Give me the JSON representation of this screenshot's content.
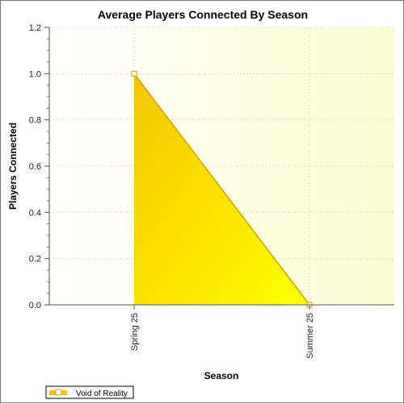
{
  "chart_data": {
    "type": "area",
    "title": "Average Players Connected By Season",
    "xlabel": "Season",
    "ylabel": "Players Connected",
    "categories": [
      "Spring 25",
      "Summer 25"
    ],
    "series": [
      {
        "name": "Void of Reality",
        "values": [
          1.0,
          0.0
        ]
      }
    ],
    "ylim": [
      0,
      1.2
    ],
    "yticks": [
      "0.0",
      "0.2",
      "0.4",
      "0.6",
      "0.8",
      "1.0",
      "1.2"
    ],
    "grid": true,
    "legend_position": "bottom-left",
    "colors": {
      "fill_start": "#f5c400",
      "fill_end": "#ffff00",
      "line": "#d4a000",
      "plot_bg_start": "#ffffff",
      "plot_bg_end": "#fdfccf"
    }
  }
}
